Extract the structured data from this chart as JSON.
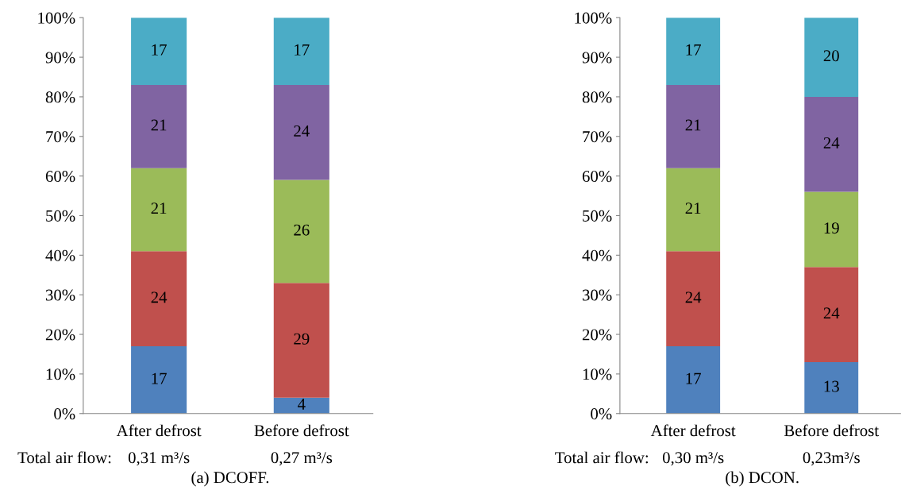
{
  "chart_data": [
    {
      "type": "bar",
      "title": "(a) DCOFF.",
      "stacked": true,
      "data_labels": true,
      "grid": false,
      "legend": false,
      "categories": [
        "After defrost",
        "Before defrost"
      ],
      "series": [
        {
          "color": "#4f81bd",
          "values": [
            17,
            4
          ]
        },
        {
          "color": "#c0504d",
          "values": [
            24,
            29
          ]
        },
        {
          "color": "#9bbb59",
          "values": [
            21,
            26
          ]
        },
        {
          "color": "#8064a2",
          "values": [
            21,
            24
          ]
        },
        {
          "color": "#4bacc6",
          "values": [
            17,
            17
          ]
        }
      ],
      "ylim": [
        0,
        100
      ],
      "yticks": [
        {
          "value": 0,
          "label": "0%"
        },
        {
          "value": 10,
          "label": "10%"
        },
        {
          "value": 20,
          "label": "20%"
        },
        {
          "value": 30,
          "label": "30%"
        },
        {
          "value": 40,
          "label": "40%"
        },
        {
          "value": 50,
          "label": "50%"
        },
        {
          "value": 60,
          "label": "60%"
        },
        {
          "value": 70,
          "label": "70%"
        },
        {
          "value": 80,
          "label": "80%"
        },
        {
          "value": 90,
          "label": "90%"
        },
        {
          "value": 100,
          "label": "100%"
        }
      ],
      "annotations": [
        "Total air flow:",
        "0,31 m³/s",
        "0,27 m³/s"
      ]
    },
    {
      "type": "bar",
      "title": "(b) DCON.",
      "stacked": true,
      "data_labels": true,
      "grid": false,
      "legend": false,
      "categories": [
        "After defrost",
        "Before defrost"
      ],
      "series": [
        {
          "color": "#4f81bd",
          "values": [
            17,
            13
          ]
        },
        {
          "color": "#c0504d",
          "values": [
            24,
            24
          ]
        },
        {
          "color": "#9bbb59",
          "values": [
            21,
            19
          ]
        },
        {
          "color": "#8064a2",
          "values": [
            21,
            24
          ]
        },
        {
          "color": "#4bacc6",
          "values": [
            17,
            20
          ]
        }
      ],
      "ylim": [
        0,
        100
      ],
      "yticks": [
        {
          "value": 0,
          "label": "0%"
        },
        {
          "value": 10,
          "label": "10%"
        },
        {
          "value": 20,
          "label": "20%"
        },
        {
          "value": 30,
          "label": "30%"
        },
        {
          "value": 40,
          "label": "40%"
        },
        {
          "value": 50,
          "label": "50%"
        },
        {
          "value": 60,
          "label": "60%"
        },
        {
          "value": 70,
          "label": "70%"
        },
        {
          "value": 80,
          "label": "80%"
        },
        {
          "value": 90,
          "label": "90%"
        },
        {
          "value": 100,
          "label": "100%"
        }
      ],
      "annotations": [
        "Total air flow:",
        "0,30 m³/s",
        "0,23m³/s"
      ]
    }
  ]
}
